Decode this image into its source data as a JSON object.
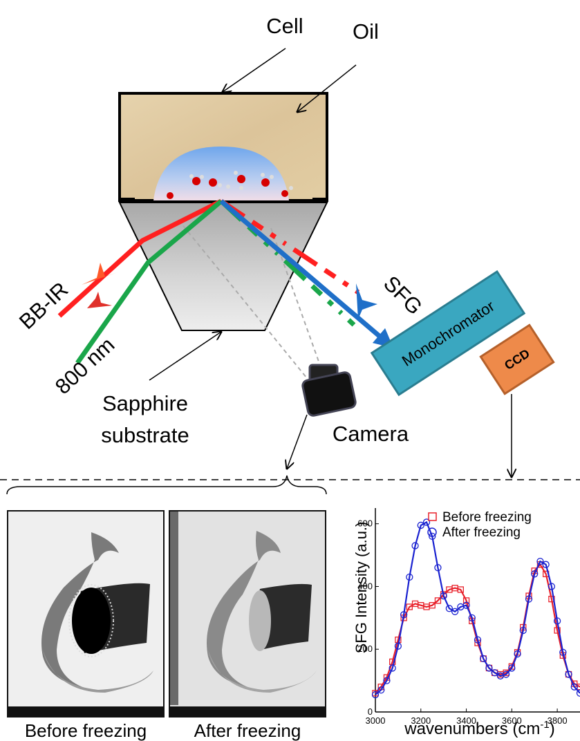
{
  "labels": {
    "cell": "Cell",
    "oil": "Oil",
    "bb_ir": "BB-IR",
    "nm800": "800 nm",
    "sfg": "SFG",
    "monochromator": "Monochromator",
    "ccd": "CCD",
    "sapphire_line1": "Sapphire",
    "sapphire_line2": "substrate",
    "camera": "Camera"
  },
  "photos": {
    "before_caption": "Before freezing",
    "after_caption": "After freezing"
  },
  "colors": {
    "ir_beam": "#ff2020",
    "nm800_beam": "#1aa64a",
    "sfg_beam": "#1f6fc8",
    "monochromator": "#3aa7c0",
    "ccd": "#ee8a4a",
    "before_series": "#e8202a",
    "after_series": "#1a22d0"
  },
  "chart_data": {
    "type": "scatter",
    "xlabel": "wavenumbers (cm",
    "xlabel_sup": "-1",
    "xlabel_end": ")",
    "ylabel": "SFG Intensity (a.u.)",
    "xlim": [
      3000,
      3900
    ],
    "ylim": [
      0,
      650
    ],
    "xticks": [
      "3000",
      "3200",
      "3400",
      "3600",
      "3800"
    ],
    "yticks": [
      "0",
      "200",
      "400",
      "600"
    ],
    "legend_position": "top-right",
    "series": [
      {
        "name": "Before freezing",
        "marker": "square",
        "x": [
          3000,
          3025,
          3050,
          3075,
          3100,
          3125,
          3150,
          3175,
          3200,
          3225,
          3250,
          3275,
          3300,
          3325,
          3350,
          3375,
          3400,
          3425,
          3450,
          3475,
          3500,
          3525,
          3550,
          3575,
          3600,
          3625,
          3650,
          3675,
          3700,
          3725,
          3750,
          3775,
          3800,
          3825,
          3850,
          3875,
          3900
        ],
        "y": [
          60,
          80,
          110,
          160,
          230,
          300,
          335,
          345,
          340,
          335,
          340,
          355,
          375,
          390,
          395,
          390,
          355,
          290,
          220,
          170,
          140,
          125,
          120,
          125,
          145,
          190,
          270,
          370,
          450,
          470,
          440,
          360,
          260,
          180,
          120,
          90,
          80
        ]
      },
      {
        "name": "After freezing",
        "marker": "circle",
        "x": [
          3000,
          3025,
          3050,
          3075,
          3100,
          3125,
          3150,
          3175,
          3200,
          3225,
          3250,
          3275,
          3300,
          3325,
          3350,
          3375,
          3400,
          3425,
          3450,
          3475,
          3500,
          3525,
          3550,
          3575,
          3600,
          3625,
          3650,
          3675,
          3700,
          3725,
          3750,
          3775,
          3800,
          3825,
          3850,
          3875,
          3900
        ],
        "y": [
          55,
          70,
          100,
          140,
          210,
          310,
          430,
          530,
          595,
          605,
          560,
          460,
          370,
          330,
          320,
          335,
          340,
          300,
          230,
          170,
          140,
          125,
          115,
          120,
          140,
          185,
          260,
          360,
          440,
          480,
          470,
          400,
          290,
          190,
          120,
          80,
          60
        ]
      }
    ]
  }
}
